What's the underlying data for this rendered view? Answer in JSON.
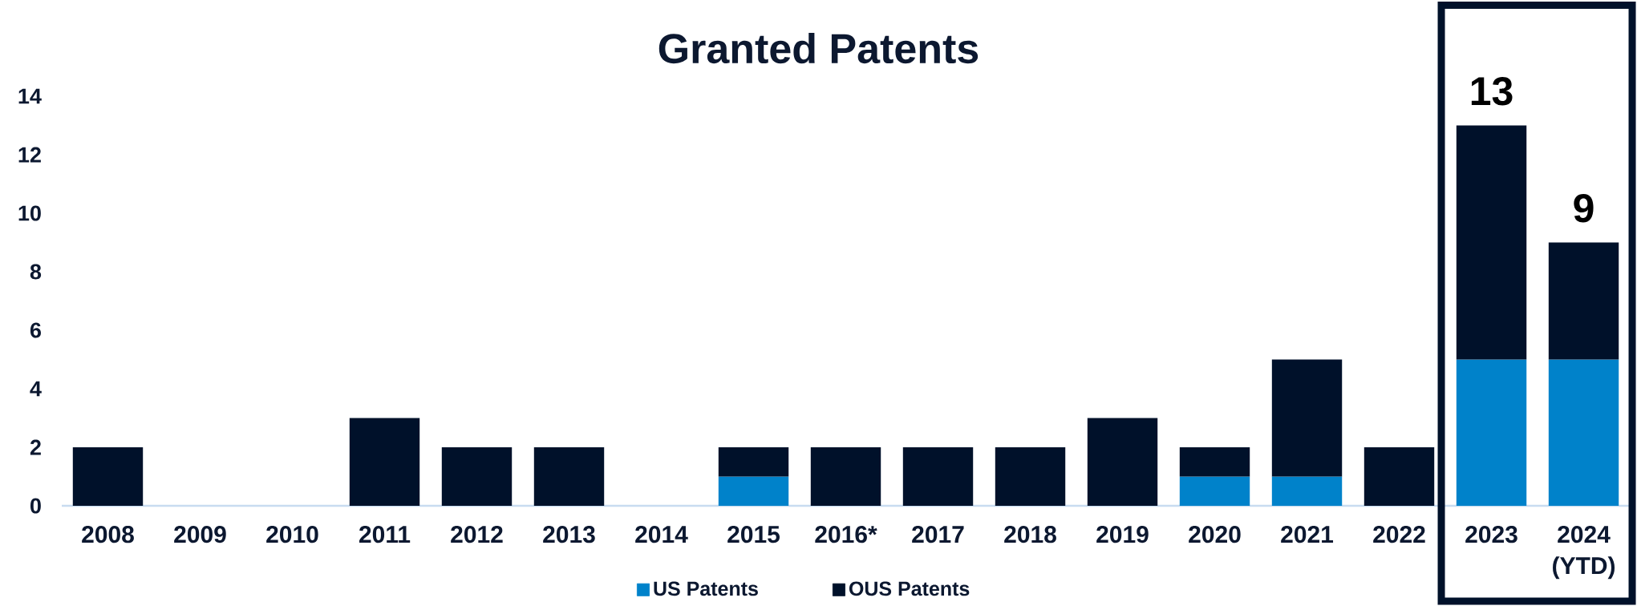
{
  "chart_data": {
    "type": "bar",
    "title": "Granted Patents",
    "categories": [
      "2008",
      "2009",
      "2010",
      "2011",
      "2012",
      "2013",
      "2014",
      "2015",
      "2016*",
      "2017",
      "2018",
      "2019",
      "2020",
      "2021",
      "2022",
      "2023",
      "2024 (YTD)"
    ],
    "stacked": true,
    "series": [
      {
        "name": "US Patents",
        "color": "#0082ca",
        "values": [
          0,
          0,
          0,
          0,
          0,
          0,
          0,
          1,
          0,
          0,
          0,
          0,
          1,
          1,
          0,
          5,
          5
        ]
      },
      {
        "name": "OUS Patents",
        "color": "#00112a",
        "values": [
          2,
          0,
          0,
          3,
          2,
          2,
          0,
          1,
          2,
          2,
          2,
          3,
          1,
          4,
          2,
          8,
          4
        ]
      }
    ],
    "ylim": [
      0,
      14
    ],
    "yticks": [
      0,
      2,
      4,
      6,
      8,
      10,
      12,
      14
    ],
    "totals": [
      null,
      null,
      null,
      null,
      null,
      null,
      null,
      null,
      null,
      null,
      null,
      null,
      null,
      null,
      null,
      "13",
      "9"
    ],
    "legend": "bottom"
  }
}
